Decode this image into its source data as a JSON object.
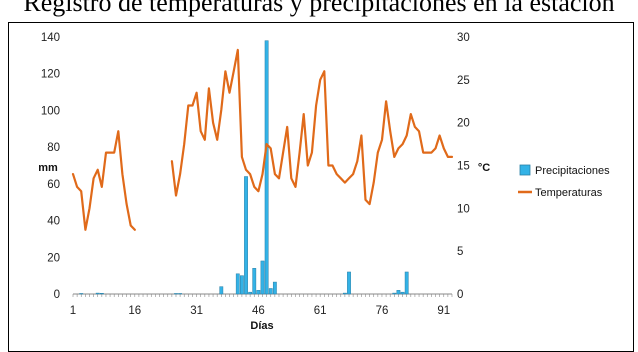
{
  "chart_data": {
    "type": "bar+line",
    "title": "Registro de temperaturas y precipitaciones en la estación",
    "xlabel": "Días",
    "ylabel_left": "mm",
    "ylabel_right": "°C",
    "x_ticks": [
      1,
      16,
      31,
      46,
      61,
      76,
      91
    ],
    "ylim_left": [
      0,
      140
    ],
    "y_ticks_left": [
      0,
      20,
      40,
      60,
      80,
      100,
      120,
      140
    ],
    "ylim_right": [
      0,
      30
    ],
    "y_ticks_right": [
      0,
      5,
      10,
      15,
      20,
      25,
      30
    ],
    "xlim": [
      1,
      93
    ],
    "grid": false,
    "legend_position": "right",
    "series": [
      {
        "name": "Precipitaciones",
        "type": "bar",
        "axis": "left",
        "color": "#33b2e6",
        "x": [
          3,
          7,
          8,
          26,
          27,
          37,
          41,
          42,
          43,
          44,
          45,
          46,
          47,
          48,
          49,
          50,
          67,
          68,
          79,
          80,
          81,
          82
        ],
        "y": [
          0.3,
          0.5,
          0.4,
          0.3,
          0.3,
          4,
          11,
          10,
          64,
          1,
          14,
          2,
          18,
          138,
          3,
          6.5,
          0.5,
          12,
          0.5,
          2,
          1,
          12
        ]
      },
      {
        "name": "Temperaturas",
        "type": "line",
        "axis": "right",
        "color": "#e06a1a",
        "x": [
          1,
          2,
          3,
          4,
          5,
          6,
          7,
          8,
          9,
          10,
          11,
          12,
          13,
          14,
          15,
          16,
          null,
          25,
          26,
          27,
          28,
          29,
          30,
          31,
          32,
          33,
          34,
          35,
          36,
          37,
          38,
          39,
          40,
          41,
          42,
          43,
          44,
          45,
          46,
          47,
          48,
          49,
          50,
          51,
          52,
          53,
          54,
          55,
          56,
          57,
          58,
          59,
          60,
          61,
          62,
          63,
          64,
          65,
          66,
          67,
          68,
          69,
          70,
          71,
          72,
          73,
          74,
          75,
          76,
          77,
          78,
          79,
          80,
          81,
          82,
          83,
          84,
          85,
          86,
          87,
          88,
          89,
          90,
          91,
          92,
          93
        ],
        "y": [
          14,
          12.5,
          12,
          7.5,
          10,
          13.5,
          14.5,
          12.5,
          16.5,
          16.5,
          16.5,
          19,
          14,
          10.5,
          8,
          7.5,
          null,
          15.5,
          11.5,
          14,
          17.5,
          22,
          22,
          23.5,
          19,
          18,
          24,
          20,
          18,
          21.5,
          26,
          23.5,
          26,
          28.5,
          16,
          14.5,
          14,
          12.5,
          12,
          14,
          17.5,
          17,
          14,
          13.5,
          16.5,
          19.5,
          13.5,
          12.5,
          16.5,
          21,
          15,
          16.5,
          22,
          25,
          26,
          15,
          15,
          14,
          13.5,
          13,
          13.5,
          14,
          15.5,
          18.5,
          11,
          10.5,
          13,
          16.5,
          18,
          22.5,
          19,
          16,
          17,
          17.5,
          18.5,
          21,
          19.5,
          19,
          16.5,
          16.5,
          16.5,
          17,
          18.5,
          17,
          16,
          16
        ]
      }
    ]
  }
}
